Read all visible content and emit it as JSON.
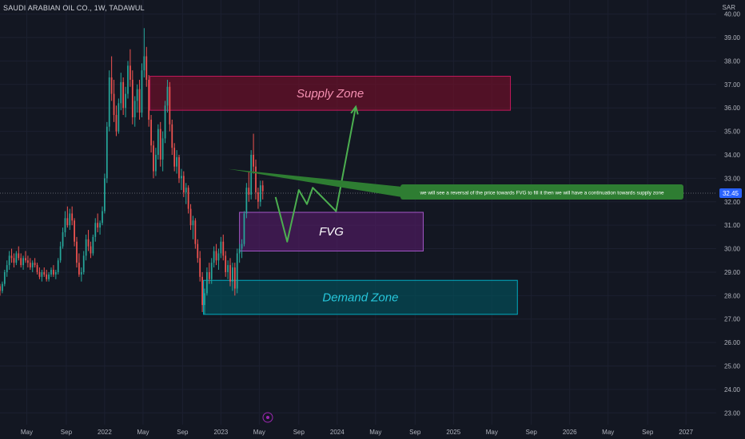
{
  "header": {
    "symbol_line": "SAUDI ARABIAN OIL CO., 1W, TADAWUL",
    "currency": "SAR"
  },
  "chart_data": {
    "type": "candlestick",
    "title": "SAUDI ARABIAN OIL CO., 1W, TADAWUL",
    "y_unit": "SAR",
    "ylim": [
      22.5,
      40.6
    ],
    "y_ticks": [
      "40.00",
      "39.00",
      "38.00",
      "37.00",
      "36.00",
      "35.00",
      "34.00",
      "33.00",
      "32.00",
      "31.00",
      "30.00",
      "29.00",
      "28.00",
      "27.00",
      "26.00",
      "25.00",
      "24.00",
      "23.00"
    ],
    "x_ticks": [
      "May",
      "Sep",
      "2022",
      "May",
      "Sep",
      "2023",
      "May",
      "Sep",
      "2024",
      "May",
      "Sep",
      "2025",
      "May",
      "Sep",
      "2026",
      "May",
      "Sep",
      "2027"
    ],
    "x_tick_values": [
      2021.33,
      2021.67,
      2022.0,
      2022.33,
      2022.67,
      2023.0,
      2023.33,
      2023.67,
      2024.0,
      2024.33,
      2024.67,
      2025.0,
      2025.33,
      2025.67,
      2026.0,
      2026.33,
      2026.67,
      2027.0
    ],
    "xlim": [
      2021.1,
      2027.26
    ],
    "last_price": "32.45",
    "candles": [
      [
        2021.1,
        28.4,
        28.5,
        28.0,
        28.2
      ],
      [
        2021.12,
        28.2,
        28.6,
        28.1,
        28.5
      ],
      [
        2021.14,
        28.5,
        29.1,
        28.4,
        29.0
      ],
      [
        2021.16,
        29.0,
        29.5,
        28.8,
        29.3
      ],
      [
        2021.18,
        29.3,
        29.9,
        29.1,
        29.7
      ],
      [
        2021.2,
        29.7,
        30.0,
        29.4,
        29.6
      ],
      [
        2021.22,
        29.6,
        29.8,
        29.2,
        29.4
      ],
      [
        2021.24,
        29.4,
        29.9,
        29.3,
        29.8
      ],
      [
        2021.26,
        29.8,
        30.1,
        29.5,
        29.6
      ],
      [
        2021.28,
        29.6,
        29.8,
        29.2,
        29.3
      ],
      [
        2021.3,
        29.3,
        29.7,
        29.1,
        29.6
      ],
      [
        2021.32,
        29.6,
        29.9,
        29.4,
        29.5
      ],
      [
        2021.34,
        29.5,
        29.7,
        29.2,
        29.4
      ],
      [
        2021.36,
        29.4,
        29.6,
        29.1,
        29.2
      ],
      [
        2021.38,
        29.2,
        29.5,
        29.0,
        29.4
      ],
      [
        2021.4,
        29.4,
        29.6,
        29.2,
        29.3
      ],
      [
        2021.42,
        29.3,
        29.4,
        28.9,
        29.0
      ],
      [
        2021.44,
        29.0,
        29.2,
        28.7,
        28.8
      ],
      [
        2021.46,
        28.8,
        29.1,
        28.6,
        29.0
      ],
      [
        2021.48,
        29.0,
        29.2,
        28.8,
        28.9
      ],
      [
        2021.5,
        28.9,
        29.1,
        28.6,
        28.7
      ],
      [
        2021.52,
        28.7,
        29.0,
        28.6,
        28.9
      ],
      [
        2021.54,
        28.9,
        29.2,
        28.8,
        29.1
      ],
      [
        2021.56,
        29.1,
        29.3,
        28.8,
        28.9
      ],
      [
        2021.58,
        28.9,
        29.1,
        28.7,
        29.0
      ],
      [
        2021.6,
        29.0,
        29.6,
        28.9,
        29.5
      ],
      [
        2021.62,
        29.5,
        30.3,
        29.4,
        30.1
      ],
      [
        2021.64,
        30.1,
        30.9,
        30.0,
        30.7
      ],
      [
        2021.66,
        30.7,
        31.6,
        30.5,
        31.3
      ],
      [
        2021.68,
        31.3,
        31.8,
        30.9,
        31.0
      ],
      [
        2021.7,
        31.0,
        31.7,
        30.8,
        31.5
      ],
      [
        2021.72,
        31.5,
        31.8,
        31.0,
        31.2
      ],
      [
        2021.74,
        31.2,
        31.3,
        30.1,
        30.3
      ],
      [
        2021.76,
        30.3,
        30.5,
        29.2,
        29.4
      ],
      [
        2021.78,
        29.4,
        29.8,
        28.8,
        28.9
      ],
      [
        2021.8,
        28.9,
        29.2,
        28.6,
        29.0
      ],
      [
        2021.82,
        29.0,
        29.9,
        28.9,
        29.7
      ],
      [
        2021.84,
        29.7,
        30.6,
        29.5,
        30.4
      ],
      [
        2021.86,
        30.4,
        30.8,
        29.9,
        30.1
      ],
      [
        2021.88,
        30.1,
        30.3,
        29.6,
        29.8
      ],
      [
        2021.9,
        29.8,
        30.6,
        29.7,
        30.5
      ],
      [
        2021.92,
        30.5,
        31.3,
        30.3,
        31.1
      ],
      [
        2021.94,
        31.1,
        31.5,
        30.7,
        30.9
      ],
      [
        2021.96,
        30.9,
        31.2,
        30.6,
        31.1
      ],
      [
        2021.98,
        31.1,
        31.8,
        31.0,
        31.6
      ],
      [
        2022.0,
        31.6,
        33.2,
        31.5,
        33.0
      ],
      [
        2022.02,
        33.0,
        35.4,
        32.8,
        35.2
      ],
      [
        2022.04,
        35.2,
        37.6,
        35.0,
        37.3
      ],
      [
        2022.06,
        37.3,
        38.2,
        36.3,
        36.6
      ],
      [
        2022.08,
        36.6,
        37.2,
        35.4,
        35.7
      ],
      [
        2022.1,
        35.7,
        36.1,
        34.8,
        35.0
      ],
      [
        2022.12,
        35.0,
        36.4,
        34.9,
        36.2
      ],
      [
        2022.14,
        36.2,
        37.5,
        35.9,
        37.1
      ],
      [
        2022.16,
        37.1,
        37.3,
        35.7,
        36.0
      ],
      [
        2022.18,
        36.0,
        36.9,
        35.6,
        36.6
      ],
      [
        2022.2,
        36.6,
        38.0,
        36.4,
        37.8
      ],
      [
        2022.22,
        37.8,
        38.5,
        36.9,
        37.2
      ],
      [
        2022.24,
        37.2,
        37.6,
        35.3,
        35.6
      ],
      [
        2022.26,
        35.6,
        36.5,
        35.2,
        36.3
      ],
      [
        2022.28,
        36.3,
        37.0,
        35.8,
        36.8
      ],
      [
        2022.3,
        36.8,
        37.2,
        35.5,
        35.8
      ],
      [
        2022.32,
        35.8,
        37.9,
        35.6,
        37.6
      ],
      [
        2022.34,
        37.6,
        39.4,
        37.3,
        38.2
      ],
      [
        2022.36,
        38.2,
        38.6,
        36.9,
        37.2
      ],
      [
        2022.38,
        37.2,
        37.4,
        35.2,
        35.5
      ],
      [
        2022.4,
        35.5,
        35.7,
        34.1,
        34.4
      ],
      [
        2022.42,
        34.4,
        34.6,
        33.0,
        33.3
      ],
      [
        2022.44,
        33.3,
        34.3,
        33.1,
        34.0
      ],
      [
        2022.46,
        34.0,
        35.3,
        33.8,
        35.1
      ],
      [
        2022.48,
        35.1,
        35.4,
        33.5,
        33.8
      ],
      [
        2022.5,
        33.8,
        35.0,
        33.3,
        34.7
      ],
      [
        2022.52,
        34.7,
        36.3,
        34.5,
        36.1
      ],
      [
        2022.54,
        36.1,
        37.2,
        35.8,
        36.9
      ],
      [
        2022.56,
        36.9,
        37.1,
        35.0,
        35.3
      ],
      [
        2022.58,
        35.3,
        35.5,
        34.0,
        34.3
      ],
      [
        2022.6,
        34.3,
        34.5,
        33.3,
        33.5
      ],
      [
        2022.62,
        33.5,
        34.2,
        33.2,
        33.9
      ],
      [
        2022.64,
        33.9,
        34.0,
        32.8,
        33.0
      ],
      [
        2022.66,
        33.0,
        33.4,
        32.5,
        33.1
      ],
      [
        2022.68,
        33.1,
        33.3,
        32.2,
        32.4
      ],
      [
        2022.7,
        32.4,
        32.8,
        31.9,
        32.6
      ],
      [
        2022.72,
        32.6,
        32.7,
        31.5,
        31.7
      ],
      [
        2022.74,
        31.7,
        31.9,
        30.8,
        31.0
      ],
      [
        2022.76,
        31.0,
        31.4,
        30.4,
        31.2
      ],
      [
        2022.78,
        31.2,
        31.3,
        30.0,
        30.2
      ],
      [
        2022.8,
        30.2,
        30.4,
        29.4,
        29.6
      ],
      [
        2022.82,
        29.6,
        29.9,
        28.6,
        28.8
      ],
      [
        2022.84,
        28.8,
        29.0,
        27.3,
        27.6
      ],
      [
        2022.86,
        27.6,
        28.3,
        27.2,
        28.1
      ],
      [
        2022.88,
        28.1,
        29.2,
        28.0,
        29.0
      ],
      [
        2022.9,
        29.0,
        29.4,
        28.5,
        28.7
      ],
      [
        2022.92,
        28.7,
        29.6,
        28.5,
        29.4
      ],
      [
        2022.94,
        29.4,
        30.1,
        29.2,
        29.9
      ],
      [
        2022.96,
        29.9,
        30.2,
        29.3,
        29.5
      ],
      [
        2022.98,
        29.5,
        30.0,
        29.1,
        29.8
      ],
      [
        2023.0,
        29.8,
        30.5,
        29.6,
        30.3
      ],
      [
        2023.02,
        30.3,
        30.6,
        29.5,
        29.7
      ],
      [
        2023.04,
        29.7,
        29.9,
        28.8,
        29.0
      ],
      [
        2023.06,
        29.0,
        29.5,
        28.7,
        29.3
      ],
      [
        2023.08,
        29.3,
        29.6,
        28.4,
        28.6
      ],
      [
        2023.1,
        28.6,
        29.4,
        28.2,
        29.2
      ],
      [
        2023.12,
        29.2,
        29.4,
        28.0,
        28.3
      ],
      [
        2023.14,
        28.3,
        30.0,
        28.1,
        29.8
      ],
      [
        2023.16,
        29.8,
        30.2,
        29.4,
        30.0
      ],
      [
        2023.18,
        30.0,
        30.4,
        29.6,
        30.2
      ],
      [
        2023.2,
        30.2,
        31.6,
        30.1,
        31.5
      ],
      [
        2023.22,
        31.5,
        32.8,
        31.3,
        32.6
      ],
      [
        2023.24,
        32.6,
        33.3,
        32.0,
        32.3
      ],
      [
        2023.26,
        32.3,
        34.2,
        32.1,
        34.0
      ],
      [
        2023.28,
        34.0,
        34.9,
        33.2,
        33.5
      ],
      [
        2023.3,
        33.5,
        33.8,
        32.1,
        32.4
      ],
      [
        2023.32,
        32.4,
        32.6,
        31.7,
        32.0
      ],
      [
        2023.34,
        32.0,
        32.9,
        31.8,
        32.7
      ],
      [
        2023.36,
        32.7,
        32.9,
        32.1,
        32.45
      ]
    ],
    "annotations": {
      "supply_zone": {
        "label": "Supply Zone",
        "x0": 2022.39,
        "x1": 2025.49,
        "y0": 35.9,
        "y1": 37.35
      },
      "fvg": {
        "label": "FVG",
        "x0": 2023.16,
        "x1": 2024.74,
        "y0": 29.9,
        "y1": 31.55
      },
      "demand_zone": {
        "label": "Demand Zone",
        "x0": 2022.85,
        "x1": 2025.55,
        "y0": 27.2,
        "y1": 28.65
      },
      "projected_path": [
        [
          2023.47,
          32.2
        ],
        [
          2023.57,
          30.3
        ],
        [
          2023.67,
          32.5
        ],
        [
          2023.74,
          31.9
        ],
        [
          2023.79,
          32.6
        ],
        [
          2023.99,
          31.6
        ],
        [
          2024.16,
          36.05
        ]
      ],
      "note": {
        "text": "we will see a reversal of the price towards FVG to fill it then we will have a continuation towards supply zone",
        "x": 2023.06,
        "y": 33.4,
        "x_box": 2024.71,
        "y_box": 32.45
      }
    }
  }
}
